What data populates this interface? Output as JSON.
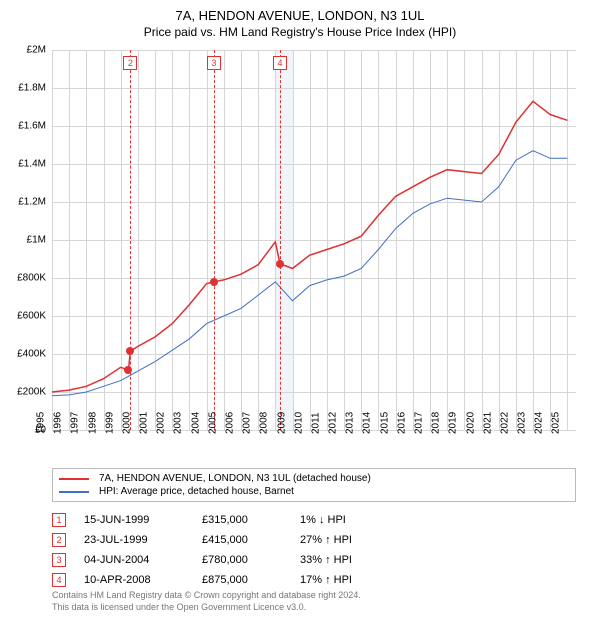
{
  "title": "7A, HENDON AVENUE, LONDON, N3 1UL",
  "subtitle": "Price paid vs. HM Land Registry's House Price Index (HPI)",
  "chart": {
    "type": "line",
    "background_color": "#ffffff",
    "grid_color": "#d6d6d6",
    "band_color": "#e8eef7",
    "xlim": [
      1995,
      2025.5
    ],
    "ylim": [
      0,
      2000000
    ],
    "ytick_step": 200000,
    "yticks": [
      "£0",
      "£200K",
      "£400K",
      "£600K",
      "£800K",
      "£1M",
      "£1.2M",
      "£1.4M",
      "£1.6M",
      "£1.8M",
      "£2M"
    ],
    "xticks": [
      1995,
      1996,
      1997,
      1998,
      1999,
      2000,
      2001,
      2002,
      2003,
      2004,
      2005,
      2006,
      2007,
      2008,
      2009,
      2010,
      2011,
      2012,
      2013,
      2014,
      2015,
      2016,
      2017,
      2018,
      2019,
      2020,
      2021,
      2022,
      2023,
      2024,
      2025
    ],
    "band_year": 2008,
    "series": [
      {
        "name": "7A, HENDON AVENUE, LONDON, N3 1UL (detached house)",
        "color": "#e03030",
        "line_width": 1.5,
        "data": [
          [
            1995,
            200000
          ],
          [
            1996,
            210000
          ],
          [
            1997,
            230000
          ],
          [
            1998,
            270000
          ],
          [
            1999,
            330000
          ],
          [
            1999.45,
            315000
          ],
          [
            1999.56,
            415000
          ],
          [
            2000,
            440000
          ],
          [
            2001,
            490000
          ],
          [
            2002,
            560000
          ],
          [
            2003,
            660000
          ],
          [
            2004,
            770000
          ],
          [
            2004.42,
            780000
          ],
          [
            2005,
            790000
          ],
          [
            2006,
            820000
          ],
          [
            2007,
            870000
          ],
          [
            2008,
            990000
          ],
          [
            2008.27,
            875000
          ],
          [
            2009,
            850000
          ],
          [
            2010,
            920000
          ],
          [
            2011,
            950000
          ],
          [
            2012,
            980000
          ],
          [
            2013,
            1020000
          ],
          [
            2014,
            1130000
          ],
          [
            2015,
            1230000
          ],
          [
            2016,
            1280000
          ],
          [
            2017,
            1330000
          ],
          [
            2018,
            1370000
          ],
          [
            2019,
            1360000
          ],
          [
            2020,
            1350000
          ],
          [
            2021,
            1450000
          ],
          [
            2022,
            1620000
          ],
          [
            2023,
            1730000
          ],
          [
            2024,
            1660000
          ],
          [
            2025,
            1630000
          ]
        ]
      },
      {
        "name": "HPI: Average price, detached house, Barnet",
        "color": "#4070c0",
        "line_width": 1,
        "data": [
          [
            1995,
            180000
          ],
          [
            1996,
            185000
          ],
          [
            1997,
            200000
          ],
          [
            1998,
            230000
          ],
          [
            1999,
            260000
          ],
          [
            2000,
            310000
          ],
          [
            2001,
            360000
          ],
          [
            2002,
            420000
          ],
          [
            2003,
            480000
          ],
          [
            2004,
            560000
          ],
          [
            2005,
            600000
          ],
          [
            2006,
            640000
          ],
          [
            2007,
            710000
          ],
          [
            2008,
            780000
          ],
          [
            2009,
            680000
          ],
          [
            2010,
            760000
          ],
          [
            2011,
            790000
          ],
          [
            2012,
            810000
          ],
          [
            2013,
            850000
          ],
          [
            2014,
            950000
          ],
          [
            2015,
            1060000
          ],
          [
            2016,
            1140000
          ],
          [
            2017,
            1190000
          ],
          [
            2018,
            1220000
          ],
          [
            2019,
            1210000
          ],
          [
            2020,
            1200000
          ],
          [
            2021,
            1280000
          ],
          [
            2022,
            1420000
          ],
          [
            2023,
            1470000
          ],
          [
            2024,
            1430000
          ],
          [
            2025,
            1430000
          ]
        ]
      }
    ],
    "markers": [
      {
        "num": "2",
        "x": 1999.56,
        "y": 415000,
        "color": "#e03030"
      },
      {
        "num": "3",
        "x": 2004.42,
        "y": 780000,
        "color": "#e03030"
      },
      {
        "num": "4",
        "x": 2008.27,
        "y": 875000,
        "color": "#e03030"
      }
    ],
    "extra_points": [
      {
        "x": 1999.45,
        "y": 315000,
        "color": "#e03030"
      },
      {
        "x": 1999.56,
        "y": 415000,
        "color": "#e03030"
      },
      {
        "x": 2004.42,
        "y": 780000,
        "color": "#e03030"
      },
      {
        "x": 2008.27,
        "y": 875000,
        "color": "#e03030"
      }
    ]
  },
  "legend": {
    "items": [
      {
        "label": "7A, HENDON AVENUE, LONDON, N3 1UL (detached house)",
        "color": "#e03030"
      },
      {
        "label": "HPI: Average price, detached house, Barnet",
        "color": "#4070c0"
      }
    ]
  },
  "transactions": [
    {
      "num": "1",
      "date": "15-JUN-1999",
      "price": "£315,000",
      "diff": "1% ↓ HPI"
    },
    {
      "num": "2",
      "date": "23-JUL-1999",
      "price": "£415,000",
      "diff": "27% ↑ HPI"
    },
    {
      "num": "3",
      "date": "04-JUN-2004",
      "price": "£780,000",
      "diff": "33% ↑ HPI"
    },
    {
      "num": "4",
      "date": "10-APR-2008",
      "price": "£875,000",
      "diff": "17% ↑ HPI"
    }
  ],
  "footer": {
    "line1": "Contains HM Land Registry data © Crown copyright and database right 2024.",
    "line2": "This data is licensed under the Open Government Licence v3.0."
  }
}
